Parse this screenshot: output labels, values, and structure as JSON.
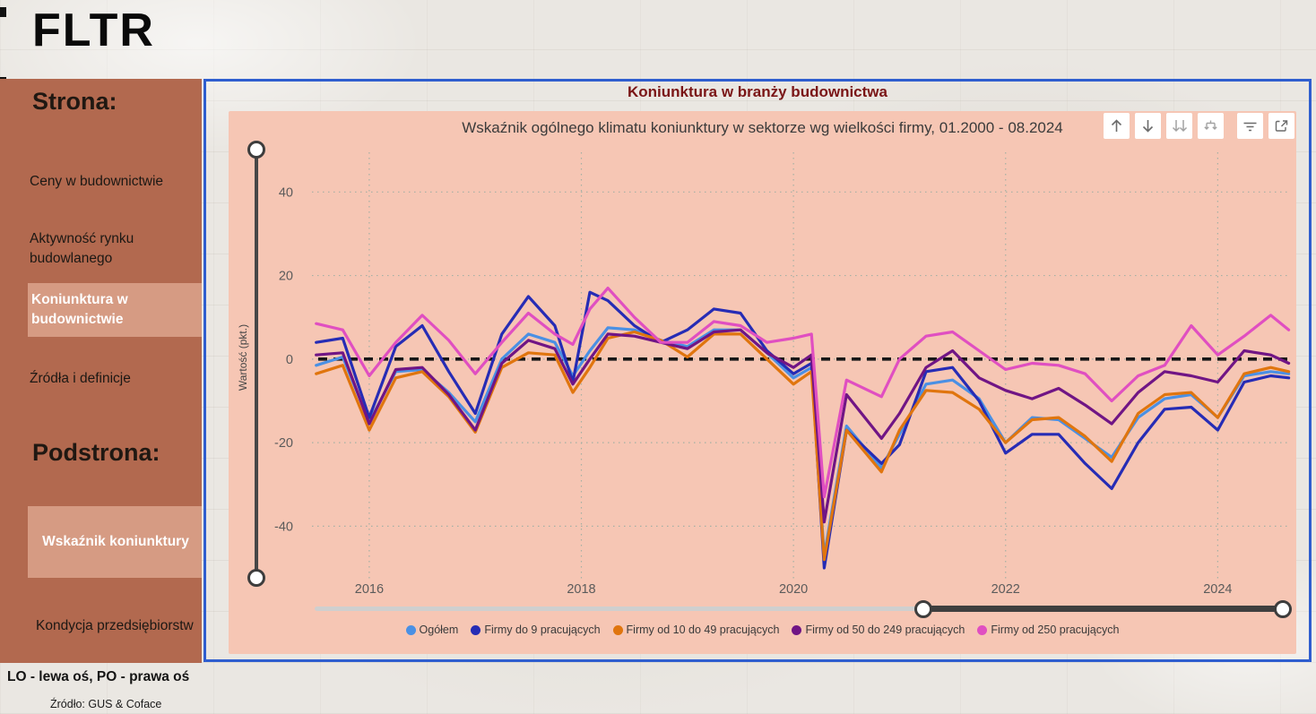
{
  "logo": "FLTR",
  "sidebar": {
    "section1_title": "Strona:",
    "items": [
      {
        "label": "Ceny w budownictwie",
        "active": false
      },
      {
        "label": "Aktywność rynku budowlanego",
        "active": false
      },
      {
        "label": "Koniunktura w budownictwie",
        "active": true
      },
      {
        "label": "Źródła i definicje",
        "active": false
      }
    ],
    "section2_title": "Podstrona:",
    "subitems": [
      {
        "label": "Wskaźnik koniunktury",
        "active": true
      },
      {
        "label": "Kondycja przedsiębiorstw",
        "active": false
      }
    ]
  },
  "footer": {
    "axis_note": "LO - lewa oś, PO - prawa oś",
    "source": "Źródło: GUS & Coface"
  },
  "report": {
    "title": "Koniunktura w branży budownictwa",
    "subtitle": "Wskaźnik ogólnego klimatu koniunktury w sektorze wg wielkości firmy, 01.2000 - 08.2024",
    "toolbar_icons": [
      "drill-up",
      "drill-down",
      "go-to-next-level",
      "expand-all",
      "filter",
      "focus-mode"
    ]
  },
  "chart_data": {
    "type": "line",
    "title": "Wskaźnik ogólnego klimatu koniunktury w sektorze wg wielkości firmy, 01.2000 - 08.2024",
    "xlabel": "",
    "ylabel": "Wartość (pkt.)",
    "x_ticks": [
      2016,
      2018,
      2020,
      2022,
      2024
    ],
    "y_ticks": [
      40,
      20,
      0,
      -20,
      -40
    ],
    "xlim": [
      2015.46,
      2024.69
    ],
    "ylim": [
      -53,
      49.5
    ],
    "grid": "dotted",
    "zero_line": true,
    "legend_position": "bottom",
    "colors": {
      "accent_border": "#2f5ecf",
      "panel_bg": "#f6c6b4",
      "sidebar_bg": "#b2694f",
      "sidebar_active_bg": "#d69b83",
      "title_maroon": "#7a1516"
    },
    "x": [
      2015.5,
      2015.75,
      2016.0,
      2016.25,
      2016.5,
      2016.75,
      2017.0,
      2017.25,
      2017.5,
      2017.75,
      2017.92,
      2018.08,
      2018.25,
      2018.5,
      2018.75,
      2019.0,
      2019.25,
      2019.5,
      2019.75,
      2020.0,
      2020.17,
      2020.29,
      2020.5,
      2020.83,
      2021.0,
      2021.25,
      2021.5,
      2021.75,
      2022.0,
      2022.25,
      2022.5,
      2022.75,
      2023.0,
      2023.25,
      2023.5,
      2023.75,
      2024.0,
      2024.25,
      2024.5,
      2024.67
    ],
    "series": [
      {
        "name": "Ogółem",
        "color": "#4a90e4",
        "values": [
          -1.5,
          0.5,
          -15,
          -3,
          -2.5,
          -8,
          -15,
          0,
          6,
          4,
          -4,
          2,
          7.5,
          7,
          4.5,
          3,
          7,
          7,
          1.5,
          -4.5,
          -2,
          -47,
          -16,
          -26,
          -18,
          -6,
          -5,
          -9.5,
          -20,
          -14,
          -14.5,
          -19,
          -23.5,
          -14,
          -9.5,
          -8.5,
          -14,
          -4,
          -3,
          -3.5
        ]
      },
      {
        "name": "Firmy do 9 pracujących",
        "color": "#262cb5",
        "values": [
          4,
          5,
          -14,
          3,
          8,
          -3,
          -13,
          6,
          15,
          8,
          -5.5,
          16,
          14,
          8,
          4,
          7,
          12,
          11,
          2,
          -3.5,
          -1,
          -50,
          -17,
          -25,
          -20.5,
          -3,
          -2,
          -10,
          -22.5,
          -18,
          -18,
          -25,
          -31,
          -20,
          -12,
          -11.5,
          -17,
          -5.5,
          -4,
          -4.5
        ]
      },
      {
        "name": "Firmy od 10 do 49 pracujących",
        "color": "#e0750e",
        "values": [
          -3.5,
          -1.5,
          -17,
          -4.5,
          -3,
          -9,
          -17.5,
          -2,
          1.5,
          1,
          -8,
          -2,
          5,
          6.5,
          4.5,
          0.5,
          6,
          6,
          0,
          -6,
          -3,
          -48,
          -17,
          -27,
          -17,
          -7.5,
          -8,
          -12,
          -20,
          -14.5,
          -14,
          -18.5,
          -24.5,
          -13,
          -8.5,
          -8,
          -14,
          -3.5,
          -2,
          -3
        ]
      },
      {
        "name": "Firmy od 50 do 249 pracujących",
        "color": "#701585",
        "values": [
          1,
          1.5,
          -15.5,
          -2.5,
          -2,
          -8.5,
          -17,
          -1,
          4.5,
          2.5,
          -6,
          0,
          6,
          5.5,
          4,
          2.5,
          6.5,
          7,
          1.5,
          -2,
          1,
          -39,
          -8.5,
          -19,
          -13,
          -2,
          2,
          -4.5,
          -7.5,
          -9.5,
          -7,
          -11,
          -15.5,
          -8,
          -3,
          -4,
          -5.5,
          2,
          1,
          -1
        ]
      },
      {
        "name": "Firmy od 250 pracujących",
        "color": "#e04fc1",
        "values": [
          8.5,
          7,
          -4,
          4,
          10.5,
          4.5,
          -3.5,
          4,
          11,
          6,
          3.5,
          12,
          17,
          10,
          4,
          4,
          9,
          8,
          4,
          5,
          6,
          -33,
          -5,
          -9,
          0,
          5.5,
          6.5,
          2,
          -2.5,
          -1,
          -1.5,
          -3.5,
          -10,
          -4,
          -1.5,
          8,
          1,
          5.5,
          10.5,
          7
        ]
      }
    ]
  }
}
